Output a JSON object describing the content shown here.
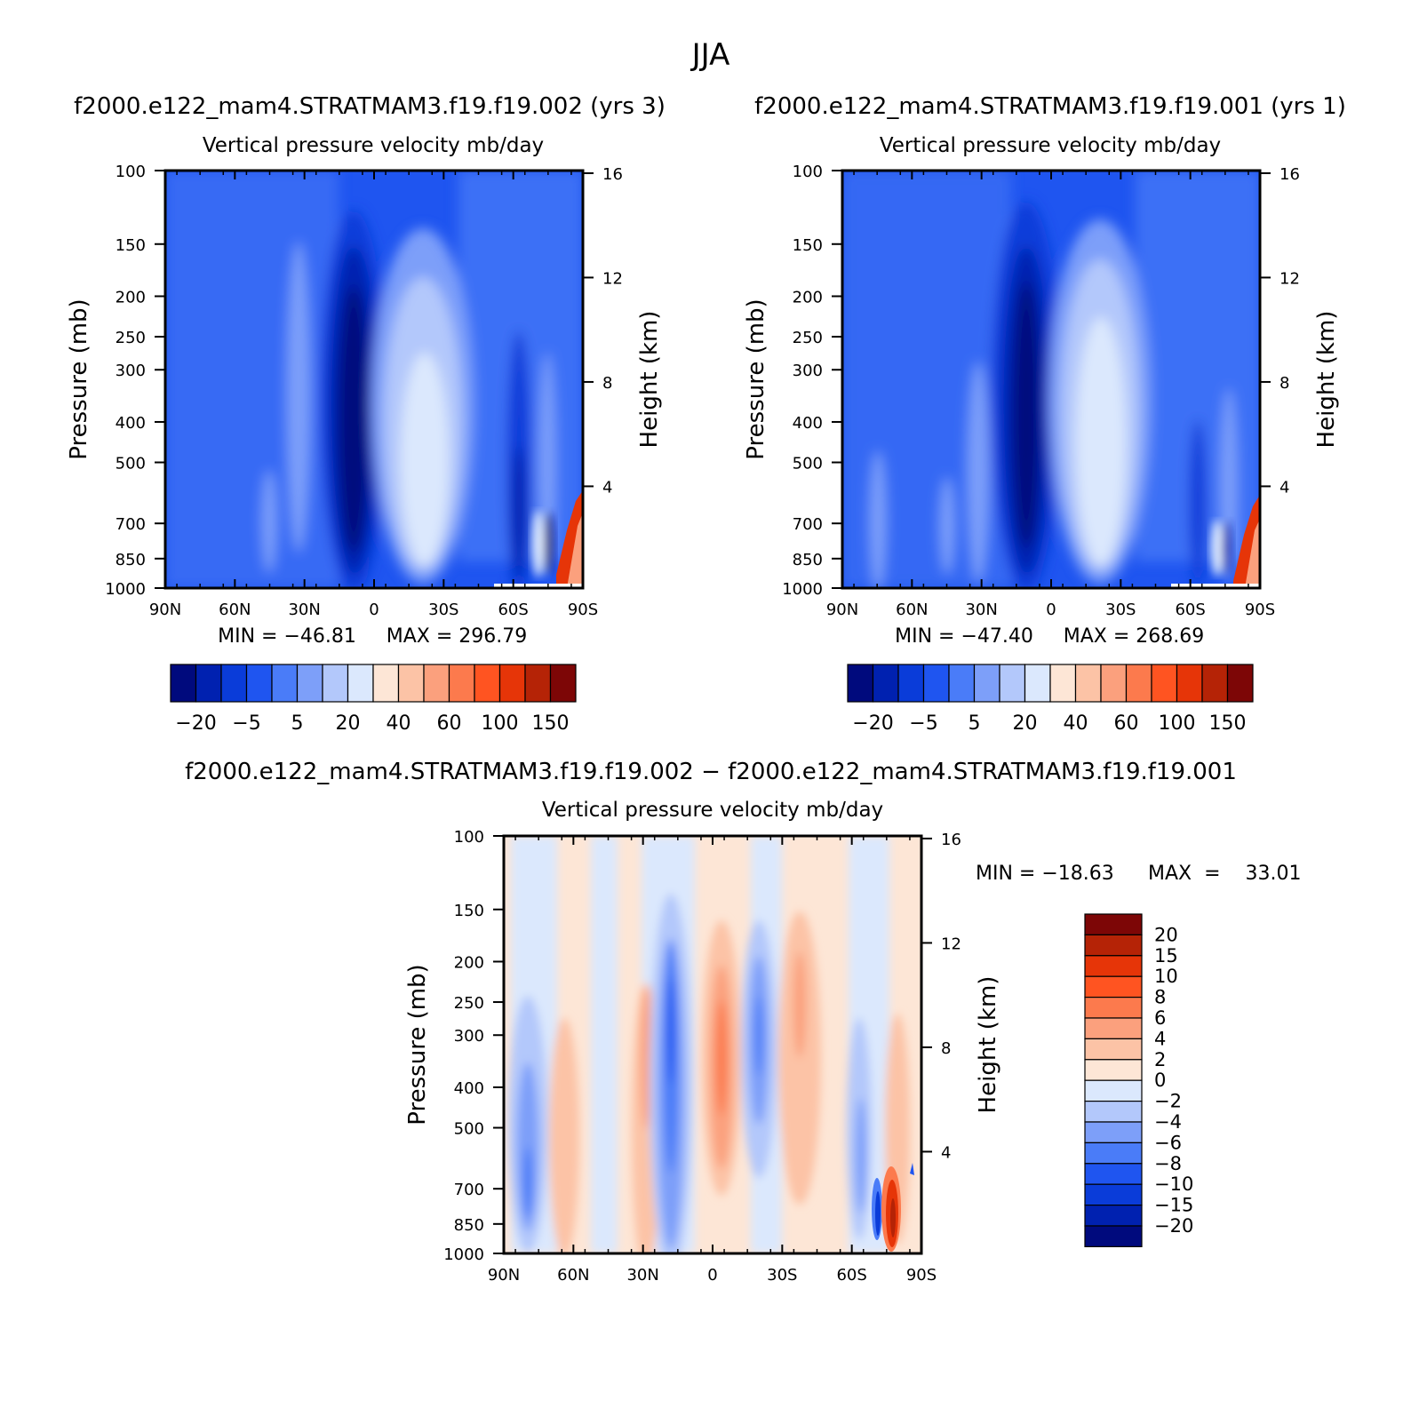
{
  "figure": {
    "title": "JJA",
    "diff_title": "f2000.e122_mam4.STRATMAM3.f19.f19.002  −  f2000.e122_mam4.STRATMAM3.f19.f19.001"
  },
  "colors": {
    "abs_levels": [
      "#000a7d",
      "#0021b0",
      "#0a3cd9",
      "#1f55f0",
      "#4a7cf8",
      "#7d9ff9",
      "#b3c8fb",
      "#dbe8fd",
      "#fde6d6",
      "#fcc3a6",
      "#fba07d",
      "#fc7a4d",
      "#ff5421",
      "#e63508",
      "#b52306",
      "#7d0606"
    ],
    "diff_levels": [
      "#7d0606",
      "#b52306",
      "#e63508",
      "#ff5421",
      "#fc7a4d",
      "#fba07d",
      "#fcc3a6",
      "#fde6d6",
      "#dbe8fd",
      "#b3c8fb",
      "#7d9ff9",
      "#4a7cf8",
      "#1f55f0",
      "#0a3cd9",
      "#0021b0",
      "#000a7d"
    ]
  },
  "chart_data": [
    {
      "type": "heatmap",
      "panel": "top-left",
      "case_title": "f2000.e122_mam4.STRATMAM3.f19.f19.002  (yrs  3)",
      "title": "Vertical  pressure  velocity     mb/day",
      "ylabel": "Pressure  (mb)",
      "y2label": "Height  (km)",
      "x_ticks": [
        "90N",
        "60N",
        "30N",
        "0",
        "30S",
        "60S",
        "90S"
      ],
      "y_ticks": [
        100,
        150,
        200,
        250,
        300,
        400,
        500,
        700,
        850,
        1000
      ],
      "y2_ticks": [
        16,
        12,
        8,
        4
      ],
      "ylim": [
        1000,
        100
      ],
      "y_scale": "log",
      "min_label": "MIN  =  −46.81",
      "max_label": "MAX  =  296.79",
      "min": -46.81,
      "max": 296.79,
      "colorbar_labels": [
        "−20",
        "−5",
        "5",
        "20",
        "40",
        "60",
        "100",
        "150"
      ],
      "colorbar_orientation": "horizontal"
    },
    {
      "type": "heatmap",
      "panel": "top-right",
      "case_title": "f2000.e122_mam4.STRATMAM3.f19.f19.001  (yrs  1)",
      "title": "Vertical  pressure  velocity     mb/day",
      "ylabel": "Pressure  (mb)",
      "y2label": "Height  (km)",
      "x_ticks": [
        "90N",
        "60N",
        "30N",
        "0",
        "30S",
        "60S",
        "90S"
      ],
      "y_ticks": [
        100,
        150,
        200,
        250,
        300,
        400,
        500,
        700,
        850,
        1000
      ],
      "y2_ticks": [
        16,
        12,
        8,
        4
      ],
      "ylim": [
        1000,
        100
      ],
      "y_scale": "log",
      "min_label": "MIN  =  −47.40",
      "max_label": "MAX  =  268.69",
      "min": -47.4,
      "max": 268.69,
      "colorbar_labels": [
        "−20",
        "−5",
        "5",
        "20",
        "40",
        "60",
        "100",
        "150"
      ],
      "colorbar_orientation": "horizontal"
    },
    {
      "type": "heatmap",
      "panel": "bottom",
      "title": "Vertical  pressure  velocity     mb/day",
      "ylabel": "Pressure  (mb)",
      "y2label": "Height  (km)",
      "x_ticks": [
        "90N",
        "60N",
        "30N",
        "0",
        "30S",
        "60S",
        "90S"
      ],
      "y_ticks": [
        100,
        150,
        200,
        250,
        300,
        400,
        500,
        700,
        850,
        1000
      ],
      "y2_ticks": [
        16,
        12,
        8,
        4
      ],
      "ylim": [
        1000,
        100
      ],
      "y_scale": "log",
      "min_label": "MIN  =  −18.63",
      "max_label": "MAX  =    33.01",
      "min": -18.63,
      "max": 33.01,
      "colorbar_labels": [
        "20",
        "15",
        "10",
        "8",
        "6",
        "4",
        "2",
        "0",
        "−2",
        "−4",
        "−6",
        "−8",
        "−10",
        "−15",
        "−20"
      ],
      "colorbar_orientation": "vertical"
    }
  ]
}
